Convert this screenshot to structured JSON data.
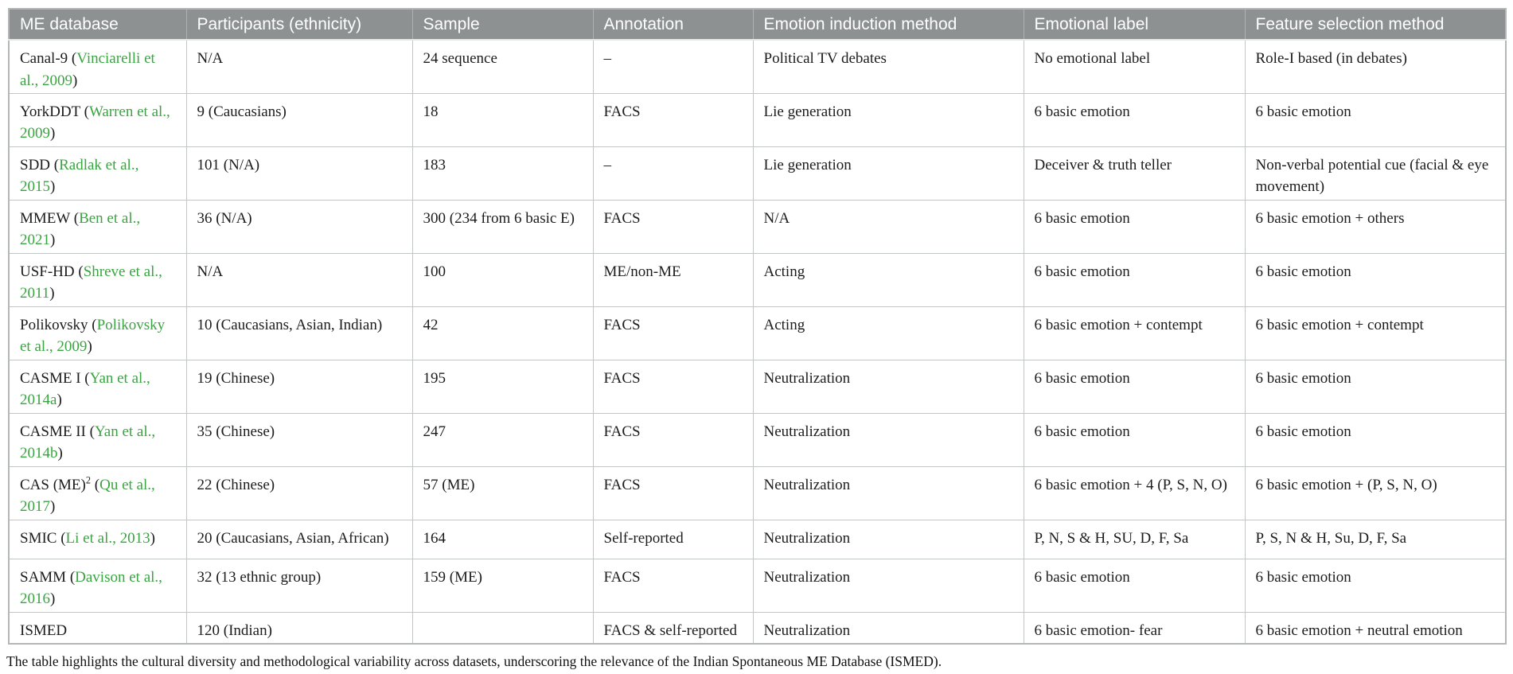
{
  "colors": {
    "header_bg": "#8d9192",
    "header_text": "#ffffff",
    "citation_green": "#3ba442",
    "body_text": "#1c1c1c",
    "grid_line": "#c3c6c6",
    "outer_border": "#b3b7b7"
  },
  "table": {
    "columns": [
      {
        "id": "database",
        "label": "ME database"
      },
      {
        "id": "participants",
        "label": "Participants (ethnicity)"
      },
      {
        "id": "sample",
        "label": "Sample"
      },
      {
        "id": "annotation",
        "label": "Annotation"
      },
      {
        "id": "induction",
        "label": "Emotion induction method"
      },
      {
        "id": "emotional_label",
        "label": "Emotional label"
      },
      {
        "id": "feature",
        "label": "Feature selection method"
      }
    ],
    "rows": [
      {
        "database": [
          {
            "t": "text",
            "v": "Canal-9 ("
          },
          {
            "t": "link",
            "v": "Vinciarelli et al., 2009"
          },
          {
            "t": "text",
            "v": ")"
          }
        ],
        "participants": "N/A",
        "sample": "24 sequence",
        "annotation": "–",
        "induction": "Political TV debates",
        "emotional_label": "No emotional label",
        "feature": "Role-I based (in debates)"
      },
      {
        "database": [
          {
            "t": "text",
            "v": "YorkDDT ("
          },
          {
            "t": "link",
            "v": "Warren et al., 2009"
          },
          {
            "t": "text",
            "v": ")"
          }
        ],
        "participants": "9 (Caucasians)",
        "sample": "18",
        "annotation": "FACS",
        "induction": "Lie generation",
        "emotional_label": "6 basic emotion",
        "feature": "6 basic emotion"
      },
      {
        "database": [
          {
            "t": "text",
            "v": "SDD ("
          },
          {
            "t": "link",
            "v": "Radlak et al., 2015"
          },
          {
            "t": "text",
            "v": ")"
          }
        ],
        "participants": "101 (N/A)",
        "sample": "183",
        "annotation": "–",
        "induction": "Lie generation",
        "emotional_label": "Deceiver & truth teller",
        "feature": "Non-verbal potential cue (facial & eye movement)"
      },
      {
        "database": [
          {
            "t": "text",
            "v": "MMEW ("
          },
          {
            "t": "link",
            "v": "Ben et al., 2021"
          },
          {
            "t": "text",
            "v": ")"
          }
        ],
        "participants": "36 (N/A)",
        "sample": "300 (234 from 6 basic E)",
        "annotation": "FACS",
        "induction": "N/A",
        "emotional_label": "6 basic emotion",
        "feature": "6 basic emotion + others"
      },
      {
        "database": [
          {
            "t": "text",
            "v": "USF-HD ("
          },
          {
            "t": "link",
            "v": "Shreve et al., 2011"
          },
          {
            "t": "text",
            "v": ")"
          }
        ],
        "participants": "N/A",
        "sample": "100",
        "annotation": "ME/non-ME",
        "induction": "Acting",
        "emotional_label": "6 basic emotion",
        "feature": "6 basic emotion"
      },
      {
        "database": [
          {
            "t": "text",
            "v": "Polikovsky ("
          },
          {
            "t": "link",
            "v": "Polikovsky et al., 2009"
          },
          {
            "t": "text",
            "v": ")"
          }
        ],
        "participants": "10 (Caucasians, Asian, Indian)",
        "sample": "42",
        "annotation": "FACS",
        "induction": "Acting",
        "emotional_label": "6 basic emotion + contempt",
        "feature": "6 basic emotion + contempt"
      },
      {
        "database": [
          {
            "t": "text",
            "v": "CASME I ("
          },
          {
            "t": "link",
            "v": "Yan et al., 2014a"
          },
          {
            "t": "text",
            "v": ")"
          }
        ],
        "participants": "19 (Chinese)",
        "sample": "195",
        "annotation": "FACS",
        "induction": "Neutralization",
        "emotional_label": "6 basic emotion",
        "feature": "6 basic emotion"
      },
      {
        "database": [
          {
            "t": "text",
            "v": "CASME II ("
          },
          {
            "t": "link",
            "v": "Yan et al., 2014b"
          },
          {
            "t": "text",
            "v": ")"
          }
        ],
        "participants": "35 (Chinese)",
        "sample": "247",
        "annotation": "FACS",
        "induction": "Neutralization",
        "emotional_label": "6 basic emotion",
        "feature": "6 basic emotion"
      },
      {
        "database": [
          {
            "t": "text",
            "v": "CAS (ME)"
          },
          {
            "t": "sup",
            "v": "2"
          },
          {
            "t": "text",
            "v": " ("
          },
          {
            "t": "link",
            "v": "Qu et al., 2017"
          },
          {
            "t": "text",
            "v": ")"
          }
        ],
        "participants": "22 (Chinese)",
        "sample": "57 (ME)",
        "annotation": "FACS",
        "induction": "Neutralization",
        "emotional_label": "6 basic emotion + 4 (P, S, N, O)",
        "feature": "6 basic emotion + (P, S, N, O)"
      },
      {
        "database": [
          {
            "t": "text",
            "v": "SMIC ("
          },
          {
            "t": "link",
            "v": "Li et al., 2013"
          },
          {
            "t": "text",
            "v": ")"
          }
        ],
        "participants": "20 (Caucasians, Asian, African)",
        "sample": "164",
        "annotation": "Self-reported",
        "induction": "Neutralization",
        "emotional_label": "P, N, S & H, SU, D, F, Sa",
        "feature": "P, S, N & H, Su, D, F, Sa"
      },
      {
        "database": [
          {
            "t": "text",
            "v": "SAMM ("
          },
          {
            "t": "link",
            "v": "Davison et al., 2016"
          },
          {
            "t": "text",
            "v": ")"
          }
        ],
        "participants": "32 (13 ethnic group)",
        "sample": "159 (ME)",
        "annotation": "FACS",
        "induction": "Neutralization",
        "emotional_label": "6 basic emotion",
        "feature": "6 basic emotion"
      },
      {
        "database": [
          {
            "t": "text",
            "v": "ISMED"
          }
        ],
        "participants": "120 (Indian)",
        "sample": "",
        "annotation": "FACS & self-reported",
        "induction": "Neutralization",
        "emotional_label": "6 basic emotion- fear",
        "feature": "6 basic emotion + neutral emotion"
      }
    ]
  },
  "caption": "The table highlights the cultural diversity and methodological variability across datasets, underscoring the relevance of the Indian Spontaneous ME Database (ISMED)."
}
